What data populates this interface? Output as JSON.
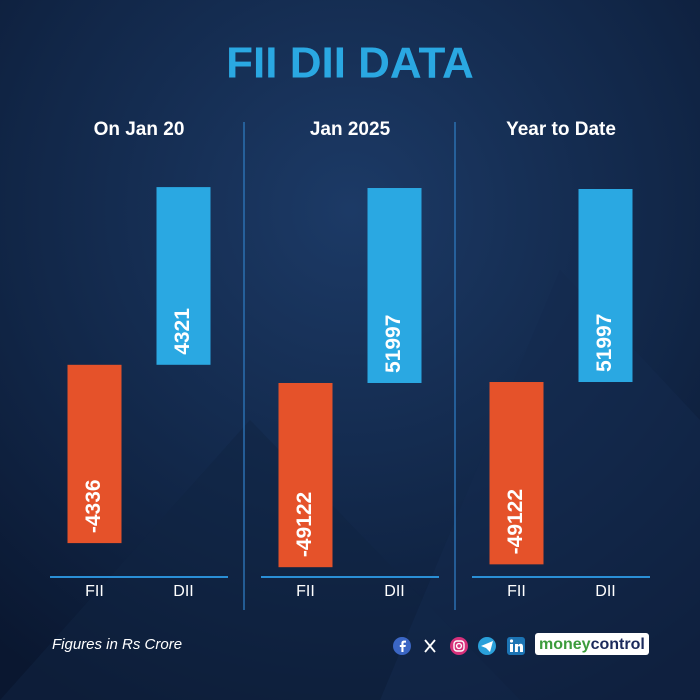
{
  "title": "FII DII DATA",
  "chart_data": [
    {
      "type": "bar",
      "title": "On Jan 20",
      "categories": [
        "FII",
        "DII"
      ],
      "values": [
        -4336,
        4321
      ],
      "colors": [
        "#e5522a",
        "#2aa8e2"
      ],
      "ylim": [
        -5160,
        4980
      ]
    },
    {
      "type": "bar",
      "title": "Jan 2025",
      "categories": [
        "FII",
        "DII"
      ],
      "values": [
        -49122,
        51997
      ],
      "colors": [
        "#e5522a",
        "#2aa8e2"
      ],
      "ylim": [
        -51740,
        59470
      ]
    },
    {
      "type": "bar",
      "title": "Year to Date",
      "categories": [
        "FII",
        "DII"
      ],
      "values": [
        -49122,
        51997
      ],
      "colors": [
        "#e5522a",
        "#2aa8e2"
      ],
      "ylim": [
        -52530,
        59810
      ]
    }
  ],
  "footer": {
    "note": "Figures in Rs Crore",
    "brand": [
      "money",
      "control"
    ]
  }
}
